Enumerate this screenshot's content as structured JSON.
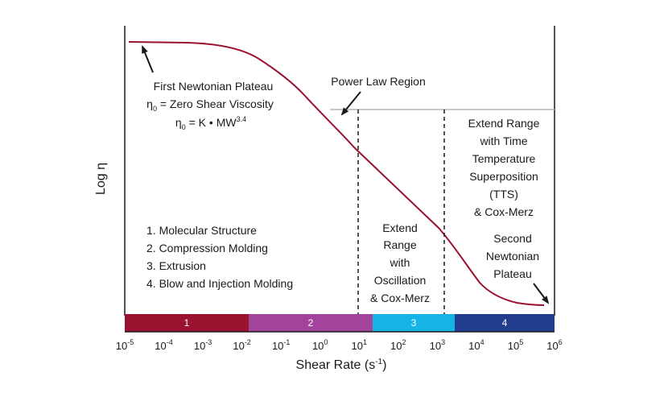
{
  "axes": {
    "x_title": "Shear Rate (s",
    "x_title_sup": "-1",
    "x_title_end": ")",
    "y_title": "Log η",
    "x_ticks": [
      {
        "base": "10",
        "exp": "-5"
      },
      {
        "base": "10",
        "exp": "-4"
      },
      {
        "base": "10",
        "exp": "-3"
      },
      {
        "base": "10",
        "exp": "-2"
      },
      {
        "base": "10",
        "exp": "-1"
      },
      {
        "base": "10",
        "exp": "0"
      },
      {
        "base": "10",
        "exp": "1"
      },
      {
        "base": "10",
        "exp": "2"
      },
      {
        "base": "10",
        "exp": "3"
      },
      {
        "base": "10",
        "exp": "4"
      },
      {
        "base": "10",
        "exp": "5"
      },
      {
        "base": "10",
        "exp": "6"
      }
    ]
  },
  "bands": [
    {
      "label": "1",
      "color": "#9b1230"
    },
    {
      "label": "2",
      "color": "#a2449b"
    },
    {
      "label": "3",
      "color": "#14b4e6"
    },
    {
      "label": "4",
      "color": "#233d8e"
    }
  ],
  "annotations": {
    "first_plateau": {
      "title": "First Newtonian Plateau",
      "line2_sym": "η",
      "line2_sub": "0",
      "line2_rest": " = Zero Shear Viscosity",
      "line3_sym": "η",
      "line3_sub": "0",
      "line3_rest": " = K • MW",
      "line3_sup": "3.4"
    },
    "power_law": "Power Law Region",
    "processes": [
      "1. Molecular Structure",
      "2. Compression Molding",
      "3. Extrusion",
      "4. Blow and Injection Molding"
    ],
    "oscillation": [
      "Extend",
      "Range",
      "with",
      "Oscillation",
      "& Cox-Merz"
    ],
    "tts": [
      "Extend Range",
      "with Time",
      "Temperature",
      "Superposition",
      "(TTS)",
      "& Cox-Merz"
    ],
    "second_plateau": [
      "Second",
      "Newtonian",
      "Plateau"
    ]
  },
  "colors": {
    "curve": "#9b1230",
    "reference_line": "#b5b5b5",
    "frame": "#1a1a1a"
  }
}
